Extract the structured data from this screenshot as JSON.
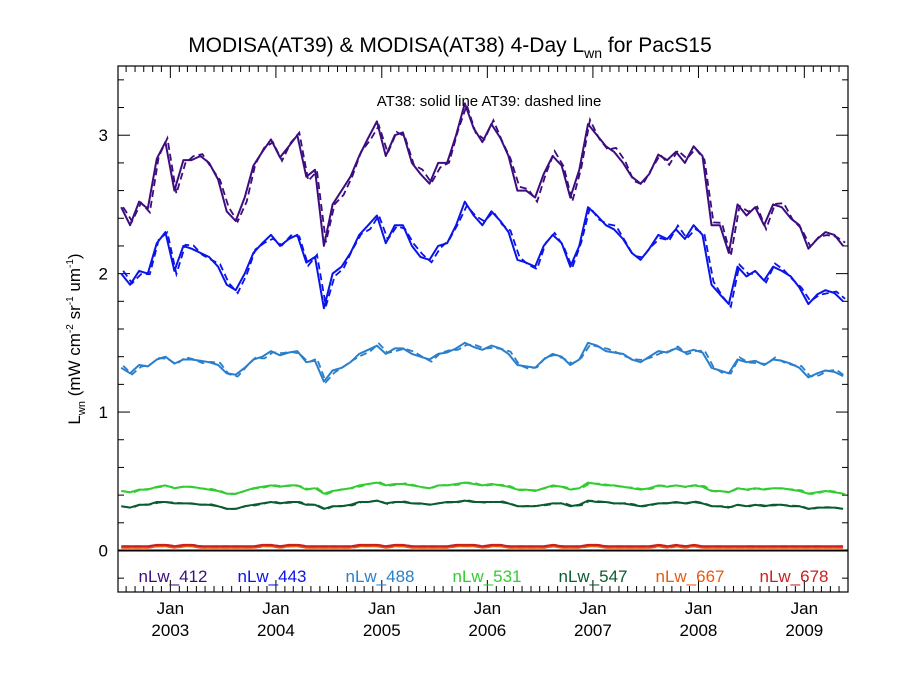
{
  "chart_data": {
    "type": "line",
    "title": "MODISA(AT39) & MODISA(AT38) 4-Day L",
    "title_sub": "wn",
    "title_suffix": " for PacS15",
    "ylabel": {
      "parts": [
        "L",
        "wn",
        " (mW cm",
        "-2",
        " sr",
        "-1",
        " um",
        "-1",
        ")"
      ]
    },
    "annotation": "AT38: solid line   AT39: dashed line",
    "ylim": [
      -0.3,
      3.5
    ],
    "yticks": [
      {
        "value": 0,
        "label": "0"
      },
      {
        "value": 1,
        "label": "1"
      },
      {
        "value": 2,
        "label": "2"
      },
      {
        "value": 3,
        "label": "3"
      }
    ],
    "xlim": [
      "2002-07-04",
      "2009-06-01"
    ],
    "xticks": [
      {
        "date": "2003-01-01",
        "month": "Jan",
        "year": "2003"
      },
      {
        "date": "2004-01-01",
        "month": "Jan",
        "year": "2004"
      },
      {
        "date": "2005-01-01",
        "month": "Jan",
        "year": "2005"
      },
      {
        "date": "2006-01-01",
        "month": "Jan",
        "year": "2006"
      },
      {
        "date": "2007-01-01",
        "month": "Jan",
        "year": "2007"
      },
      {
        "date": "2008-01-01",
        "month": "Jan",
        "year": "2008"
      },
      {
        "date": "2009-01-01",
        "month": "Jan",
        "year": "2009"
      }
    ],
    "x": [
      "2002-07",
      "2002-08",
      "2002-09",
      "2002-10",
      "2002-11",
      "2002-12",
      "2003-01",
      "2003-02",
      "2003-03",
      "2003-04",
      "2003-05",
      "2003-06",
      "2003-07",
      "2003-08",
      "2003-09",
      "2003-10",
      "2003-11",
      "2003-12",
      "2004-01",
      "2004-02",
      "2004-03",
      "2004-04",
      "2004-05",
      "2004-06",
      "2004-07",
      "2004-08",
      "2004-09",
      "2004-10",
      "2004-11",
      "2004-12",
      "2005-01",
      "2005-02",
      "2005-03",
      "2005-04",
      "2005-05",
      "2005-06",
      "2005-07",
      "2005-08",
      "2005-09",
      "2005-10",
      "2005-11",
      "2005-12",
      "2006-01",
      "2006-02",
      "2006-03",
      "2006-04",
      "2006-05",
      "2006-06",
      "2006-07",
      "2006-08",
      "2006-09",
      "2006-10",
      "2006-11",
      "2006-12",
      "2007-01",
      "2007-02",
      "2007-03",
      "2007-04",
      "2007-05",
      "2007-06",
      "2007-07",
      "2007-08",
      "2007-09",
      "2007-10",
      "2007-11",
      "2007-12",
      "2008-01",
      "2008-02",
      "2008-03",
      "2008-04",
      "2008-05",
      "2008-06",
      "2008-07",
      "2008-08",
      "2008-09",
      "2008-10",
      "2008-11",
      "2008-12",
      "2009-01",
      "2009-02",
      "2009-03",
      "2009-04",
      "2009-05"
    ],
    "series": [
      {
        "name": "nLw_412",
        "color": "#3d0d80",
        "values": [
          2.48,
          2.35,
          2.52,
          2.47,
          2.83,
          2.95,
          2.6,
          2.82,
          2.82,
          2.85,
          2.8,
          2.68,
          2.45,
          2.38,
          2.55,
          2.78,
          2.88,
          2.97,
          2.84,
          2.92,
          3.0,
          2.7,
          2.75,
          2.2,
          2.5,
          2.6,
          2.7,
          2.85,
          2.98,
          3.1,
          2.85,
          3.0,
          3.02,
          2.8,
          2.72,
          2.65,
          2.8,
          2.8,
          3.0,
          3.23,
          3.05,
          2.95,
          3.08,
          2.98,
          2.85,
          2.6,
          2.6,
          2.55,
          2.72,
          2.85,
          2.78,
          2.55,
          2.75,
          3.08,
          3.0,
          2.92,
          2.88,
          2.8,
          2.7,
          2.65,
          2.72,
          2.86,
          2.82,
          2.88,
          2.8,
          2.92,
          2.85,
          2.35,
          2.35,
          2.15,
          2.5,
          2.42,
          2.48,
          2.35,
          2.5,
          2.48,
          2.4,
          2.35,
          2.18,
          2.25,
          2.3,
          2.28,
          2.2
        ]
      },
      {
        "name": "nLw_443",
        "color": "#0a14e8",
        "values": [
          2.0,
          1.92,
          2.02,
          2.0,
          2.22,
          2.3,
          2.02,
          2.2,
          2.18,
          2.15,
          2.12,
          2.05,
          1.92,
          1.88,
          2.0,
          2.15,
          2.22,
          2.28,
          2.2,
          2.25,
          2.28,
          2.08,
          2.12,
          1.75,
          2.0,
          2.05,
          2.15,
          2.28,
          2.35,
          2.42,
          2.22,
          2.35,
          2.35,
          2.2,
          2.12,
          2.1,
          2.2,
          2.22,
          2.35,
          2.52,
          2.42,
          2.35,
          2.45,
          2.38,
          2.3,
          2.1,
          2.08,
          2.05,
          2.2,
          2.28,
          2.22,
          2.05,
          2.2,
          2.48,
          2.42,
          2.35,
          2.32,
          2.25,
          2.15,
          2.1,
          2.18,
          2.28,
          2.25,
          2.32,
          2.25,
          2.35,
          2.28,
          1.92,
          1.85,
          1.78,
          2.05,
          1.98,
          2.02,
          1.95,
          2.05,
          2.02,
          1.98,
          1.9,
          1.78,
          1.85,
          1.88,
          1.86,
          1.8
        ]
      },
      {
        "name": "nLw_488",
        "color": "#2a7fcc",
        "values": [
          1.32,
          1.28,
          1.34,
          1.33,
          1.38,
          1.4,
          1.35,
          1.38,
          1.38,
          1.37,
          1.36,
          1.34,
          1.28,
          1.27,
          1.32,
          1.38,
          1.4,
          1.44,
          1.41,
          1.43,
          1.44,
          1.36,
          1.37,
          1.22,
          1.3,
          1.32,
          1.36,
          1.42,
          1.45,
          1.48,
          1.42,
          1.46,
          1.46,
          1.42,
          1.4,
          1.38,
          1.42,
          1.43,
          1.46,
          1.5,
          1.47,
          1.45,
          1.48,
          1.46,
          1.42,
          1.34,
          1.33,
          1.32,
          1.38,
          1.42,
          1.4,
          1.34,
          1.38,
          1.5,
          1.48,
          1.44,
          1.43,
          1.42,
          1.38,
          1.36,
          1.4,
          1.44,
          1.43,
          1.46,
          1.43,
          1.45,
          1.43,
          1.32,
          1.3,
          1.28,
          1.38,
          1.36,
          1.37,
          1.34,
          1.38,
          1.37,
          1.35,
          1.32,
          1.25,
          1.28,
          1.3,
          1.29,
          1.26
        ]
      },
      {
        "name": "nLw_531",
        "color": "#33cc33",
        "values": [
          0.43,
          0.42,
          0.44,
          0.44,
          0.46,
          0.47,
          0.45,
          0.46,
          0.46,
          0.45,
          0.44,
          0.43,
          0.41,
          0.41,
          0.43,
          0.45,
          0.46,
          0.47,
          0.46,
          0.47,
          0.47,
          0.44,
          0.45,
          0.41,
          0.43,
          0.44,
          0.45,
          0.47,
          0.48,
          0.49,
          0.47,
          0.48,
          0.48,
          0.47,
          0.46,
          0.45,
          0.47,
          0.47,
          0.48,
          0.49,
          0.48,
          0.47,
          0.48,
          0.47,
          0.46,
          0.44,
          0.44,
          0.43,
          0.45,
          0.47,
          0.46,
          0.44,
          0.45,
          0.49,
          0.48,
          0.47,
          0.47,
          0.46,
          0.45,
          0.44,
          0.45,
          0.47,
          0.46,
          0.47,
          0.46,
          0.47,
          0.46,
          0.43,
          0.43,
          0.42,
          0.45,
          0.44,
          0.45,
          0.44,
          0.45,
          0.45,
          0.44,
          0.43,
          0.41,
          0.42,
          0.43,
          0.42,
          0.41
        ]
      },
      {
        "name": "nLw_547",
        "color": "#0a5c2e",
        "values": [
          0.32,
          0.31,
          0.33,
          0.33,
          0.35,
          0.35,
          0.34,
          0.34,
          0.34,
          0.33,
          0.33,
          0.32,
          0.3,
          0.3,
          0.32,
          0.33,
          0.34,
          0.35,
          0.34,
          0.35,
          0.35,
          0.33,
          0.33,
          0.3,
          0.32,
          0.32,
          0.33,
          0.35,
          0.35,
          0.36,
          0.34,
          0.35,
          0.35,
          0.34,
          0.34,
          0.33,
          0.34,
          0.35,
          0.35,
          0.36,
          0.35,
          0.35,
          0.35,
          0.35,
          0.34,
          0.32,
          0.32,
          0.32,
          0.33,
          0.34,
          0.34,
          0.32,
          0.33,
          0.36,
          0.35,
          0.35,
          0.34,
          0.34,
          0.33,
          0.32,
          0.33,
          0.34,
          0.34,
          0.35,
          0.34,
          0.35,
          0.34,
          0.32,
          0.32,
          0.31,
          0.33,
          0.32,
          0.33,
          0.32,
          0.33,
          0.33,
          0.32,
          0.32,
          0.3,
          0.31,
          0.31,
          0.31,
          0.3
        ]
      },
      {
        "name": "nLw_667",
        "color": "#e85a12",
        "values": [
          0.02,
          0.02,
          0.02,
          0.02,
          0.03,
          0.03,
          0.02,
          0.03,
          0.03,
          0.02,
          0.02,
          0.02,
          0.02,
          0.02,
          0.02,
          0.02,
          0.03,
          0.03,
          0.02,
          0.03,
          0.03,
          0.02,
          0.02,
          0.02,
          0.02,
          0.02,
          0.02,
          0.03,
          0.03,
          0.03,
          0.02,
          0.03,
          0.03,
          0.02,
          0.02,
          0.02,
          0.02,
          0.02,
          0.03,
          0.03,
          0.03,
          0.02,
          0.03,
          0.03,
          0.02,
          0.02,
          0.02,
          0.02,
          0.02,
          0.03,
          0.02,
          0.02,
          0.02,
          0.03,
          0.03,
          0.02,
          0.02,
          0.02,
          0.02,
          0.02,
          0.02,
          0.03,
          0.02,
          0.03,
          0.02,
          0.03,
          0.02,
          0.02,
          0.02,
          0.02,
          0.02,
          0.02,
          0.02,
          0.02,
          0.02,
          0.02,
          0.02,
          0.02,
          0.02,
          0.02,
          0.02,
          0.02,
          0.02
        ]
      },
      {
        "name": "nLw_678",
        "color": "#cc1f1f",
        "values": [
          0.03,
          0.03,
          0.03,
          0.03,
          0.04,
          0.04,
          0.03,
          0.04,
          0.04,
          0.03,
          0.03,
          0.03,
          0.03,
          0.03,
          0.03,
          0.03,
          0.04,
          0.04,
          0.03,
          0.04,
          0.04,
          0.03,
          0.03,
          0.03,
          0.03,
          0.03,
          0.03,
          0.04,
          0.04,
          0.04,
          0.03,
          0.04,
          0.04,
          0.03,
          0.03,
          0.03,
          0.03,
          0.03,
          0.04,
          0.04,
          0.04,
          0.03,
          0.04,
          0.04,
          0.03,
          0.03,
          0.03,
          0.03,
          0.03,
          0.04,
          0.03,
          0.03,
          0.03,
          0.04,
          0.04,
          0.03,
          0.03,
          0.03,
          0.03,
          0.03,
          0.03,
          0.04,
          0.03,
          0.04,
          0.03,
          0.04,
          0.03,
          0.03,
          0.03,
          0.03,
          0.03,
          0.03,
          0.03,
          0.03,
          0.03,
          0.03,
          0.03,
          0.03,
          0.03,
          0.03,
          0.03,
          0.03,
          0.03
        ]
      }
    ],
    "dashed_offset_note": "AT39 series shown dashed, nearly coincident with AT38",
    "reference_line": {
      "value": 0,
      "color": "#000000"
    },
    "legend_placement": "bottom-inside"
  }
}
